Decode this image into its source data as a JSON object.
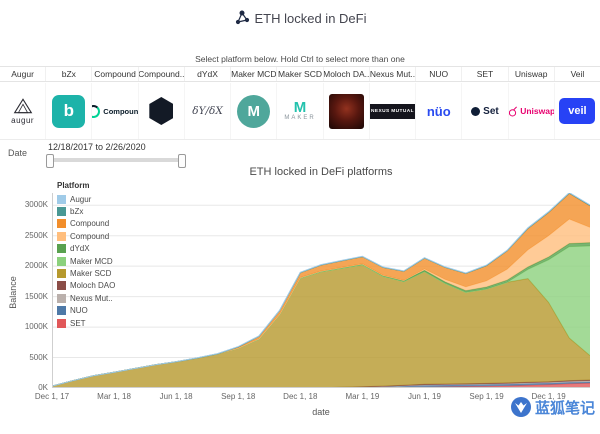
{
  "header": {
    "title": "ETH locked in DeFi",
    "subtitle": "Select platform below. Hold Ctrl to select more than one"
  },
  "tabs": [
    {
      "id": "augur",
      "label": "Augur"
    },
    {
      "id": "bzx",
      "label": "bZx"
    },
    {
      "id": "compound",
      "label": "Compound"
    },
    {
      "id": "compound2",
      "label": "Compound.."
    },
    {
      "id": "dydx",
      "label": "dYdX"
    },
    {
      "id": "maker-mcd",
      "label": "Maker MCD"
    },
    {
      "id": "maker-scd",
      "label": "Maker SCD"
    },
    {
      "id": "moloch",
      "label": "Moloch DA.."
    },
    {
      "id": "nexus",
      "label": "Nexus Mut.."
    },
    {
      "id": "nuo",
      "label": "NUO"
    },
    {
      "id": "set",
      "label": "SET"
    },
    {
      "id": "uniswap",
      "label": "Uniswap"
    },
    {
      "id": "veil",
      "label": "Veil"
    }
  ],
  "platforms": [
    {
      "id": "augur",
      "logo_text": "augur"
    },
    {
      "id": "bzx",
      "logo_text": "b"
    },
    {
      "id": "compound",
      "logo_text": "Compound"
    },
    {
      "id": "compound2",
      "logo_text": ""
    },
    {
      "id": "dydx",
      "logo_text": "δY/δX"
    },
    {
      "id": "maker-mcd",
      "logo_text": "M"
    },
    {
      "id": "maker-scd",
      "logo_text": "M",
      "sub_text": "MAKER"
    },
    {
      "id": "moloch",
      "logo_text": ""
    },
    {
      "id": "nexus",
      "logo_text": "NEXUS MUTUAL"
    },
    {
      "id": "nuo",
      "logo_text": "nüo"
    },
    {
      "id": "set",
      "logo_text": "Set"
    },
    {
      "id": "uniswap",
      "logo_text": "Uniswap"
    },
    {
      "id": "veil",
      "logo_text": "veil"
    }
  ],
  "date_filter": {
    "label": "Date",
    "range": "12/18/2017 to 2/26/2020"
  },
  "watermark": {
    "text": "蓝狐笔记"
  },
  "chart_data": {
    "type": "area",
    "stacked": true,
    "title": "ETH locked in DeFi platforms",
    "legend_title": "Platform",
    "xlabel": "date",
    "ylabel": "Balance",
    "unit": "K ETH",
    "ylim": [
      0,
      3200
    ],
    "grid": true,
    "legend_position": "top-left-inside",
    "x": [
      "2017-12",
      "2018-01",
      "2018-02",
      "2018-03",
      "2018-04",
      "2018-05",
      "2018-06",
      "2018-07",
      "2018-08",
      "2018-09",
      "2018-10",
      "2018-11",
      "2018-12",
      "2019-01",
      "2019-02",
      "2019-03",
      "2019-04",
      "2019-05",
      "2019-06",
      "2019-07",
      "2019-08",
      "2019-09",
      "2019-10",
      "2019-11",
      "2019-12",
      "2020-01",
      "2020-02"
    ],
    "x_ticks": [
      {
        "index": 0,
        "label": "Dec 1, 17"
      },
      {
        "index": 3,
        "label": "Mar 1, 18"
      },
      {
        "index": 6,
        "label": "Jun 1, 18"
      },
      {
        "index": 9,
        "label": "Sep 1, 18"
      },
      {
        "index": 12,
        "label": "Dec 1, 18"
      },
      {
        "index": 15,
        "label": "Mar 1, 19"
      },
      {
        "index": 18,
        "label": "Jun 1, 19"
      },
      {
        "index": 21,
        "label": "Sep 1, 19"
      },
      {
        "index": 24,
        "label": "Dec 1, 19"
      }
    ],
    "y_ticks": [
      {
        "value": 0,
        "label": "0K"
      },
      {
        "value": 500,
        "label": "500K"
      },
      {
        "value": 1000,
        "label": "1000K"
      },
      {
        "value": 1500,
        "label": "1500K"
      },
      {
        "value": 2000,
        "label": "2000K"
      },
      {
        "value": 2500,
        "label": "2500K"
      },
      {
        "value": 3000,
        "label": "3000K"
      }
    ],
    "series": [
      {
        "id": "augur",
        "label": "Augur",
        "color": "#A0CBE8",
        "values": [
          0,
          0,
          0,
          0,
          0,
          0,
          3,
          4,
          4,
          5,
          5,
          5,
          6,
          6,
          6,
          6,
          6,
          6,
          7,
          7,
          7,
          7,
          8,
          8,
          8,
          8,
          8
        ]
      },
      {
        "id": "bzx",
        "label": "bZx",
        "color": "#499894",
        "values": [
          0,
          0,
          0,
          0,
          0,
          0,
          0,
          0,
          0,
          0,
          0,
          0,
          0,
          0,
          0,
          0,
          0,
          0,
          0,
          0,
          2,
          3,
          4,
          5,
          6,
          8,
          10
        ]
      },
      {
        "id": "compound",
        "label": "Compound",
        "color": "#F28E2B",
        "values": [
          0,
          0,
          0,
          0,
          0,
          0,
          0,
          0,
          0,
          20,
          40,
          60,
          80,
          100,
          110,
          120,
          130,
          150,
          180,
          200,
          220,
          250,
          300,
          350,
          380,
          420,
          350
        ]
      },
      {
        "id": "compound2",
        "label": "Compound",
        "color": "#FFBE7D",
        "values": [
          0,
          0,
          0,
          0,
          0,
          0,
          0,
          0,
          0,
          0,
          0,
          0,
          0,
          0,
          0,
          0,
          0,
          0,
          20,
          40,
          60,
          100,
          180,
          280,
          350,
          400,
          250
        ]
      },
      {
        "id": "dydx",
        "label": "dYdX",
        "color": "#59A14F",
        "values": [
          0,
          0,
          0,
          0,
          0,
          0,
          0,
          0,
          0,
          5,
          8,
          10,
          12,
          14,
          15,
          16,
          18,
          20,
          22,
          25,
          28,
          32,
          36,
          40,
          45,
          50,
          55
        ]
      },
      {
        "id": "maker-mcd",
        "label": "Maker MCD",
        "color": "#8CD17D",
        "values": [
          0,
          0,
          0,
          0,
          0,
          0,
          0,
          0,
          0,
          0,
          0,
          0,
          0,
          0,
          0,
          0,
          0,
          0,
          0,
          0,
          0,
          0,
          0,
          150,
          700,
          1500,
          1800
        ]
      },
      {
        "id": "maker-scd",
        "label": "Maker SCD",
        "color": "#B6992D",
        "values": [
          30,
          120,
          200,
          260,
          320,
          380,
          430,
          490,
          560,
          650,
          800,
          1200,
          1800,
          1900,
          1950,
          2000,
          1800,
          1700,
          1850,
          1650,
          1500,
          1550,
          1650,
          1700,
          1300,
          700,
          400
        ]
      },
      {
        "id": "moloch",
        "label": "Moloch DAO",
        "color": "#8B4D47",
        "values": [
          0,
          0,
          0,
          0,
          0,
          0,
          0,
          0,
          0,
          0,
          0,
          0,
          0,
          0,
          3,
          5,
          6,
          8,
          10,
          10,
          10,
          10,
          12,
          12,
          12,
          14,
          15
        ]
      },
      {
        "id": "nexus",
        "label": "Nexus Mut..",
        "color": "#BAB0AC",
        "values": [
          0,
          0,
          0,
          0,
          0,
          0,
          0,
          0,
          0,
          0,
          0,
          0,
          0,
          0,
          0,
          0,
          0,
          3,
          5,
          6,
          8,
          10,
          12,
          14,
          15,
          17,
          18
        ]
      },
      {
        "id": "nuo",
        "label": "NUO",
        "color": "#4E79A7",
        "values": [
          0,
          0,
          0,
          0,
          0,
          0,
          0,
          0,
          0,
          0,
          0,
          0,
          0,
          5,
          10,
          15,
          20,
          25,
          30,
          30,
          28,
          25,
          25,
          25,
          22,
          20,
          18
        ]
      },
      {
        "id": "set",
        "label": "SET",
        "color": "#E15759",
        "values": [
          0,
          0,
          0,
          0,
          0,
          0,
          0,
          0,
          0,
          0,
          0,
          0,
          0,
          0,
          0,
          0,
          5,
          10,
          15,
          20,
          25,
          30,
          35,
          45,
          55,
          70,
          80
        ]
      }
    ],
    "stack_order": [
      "set",
      "nuo",
      "nexus",
      "moloch",
      "maker-scd",
      "maker-mcd",
      "dydx",
      "compound2",
      "compound",
      "bzx",
      "augur"
    ]
  }
}
